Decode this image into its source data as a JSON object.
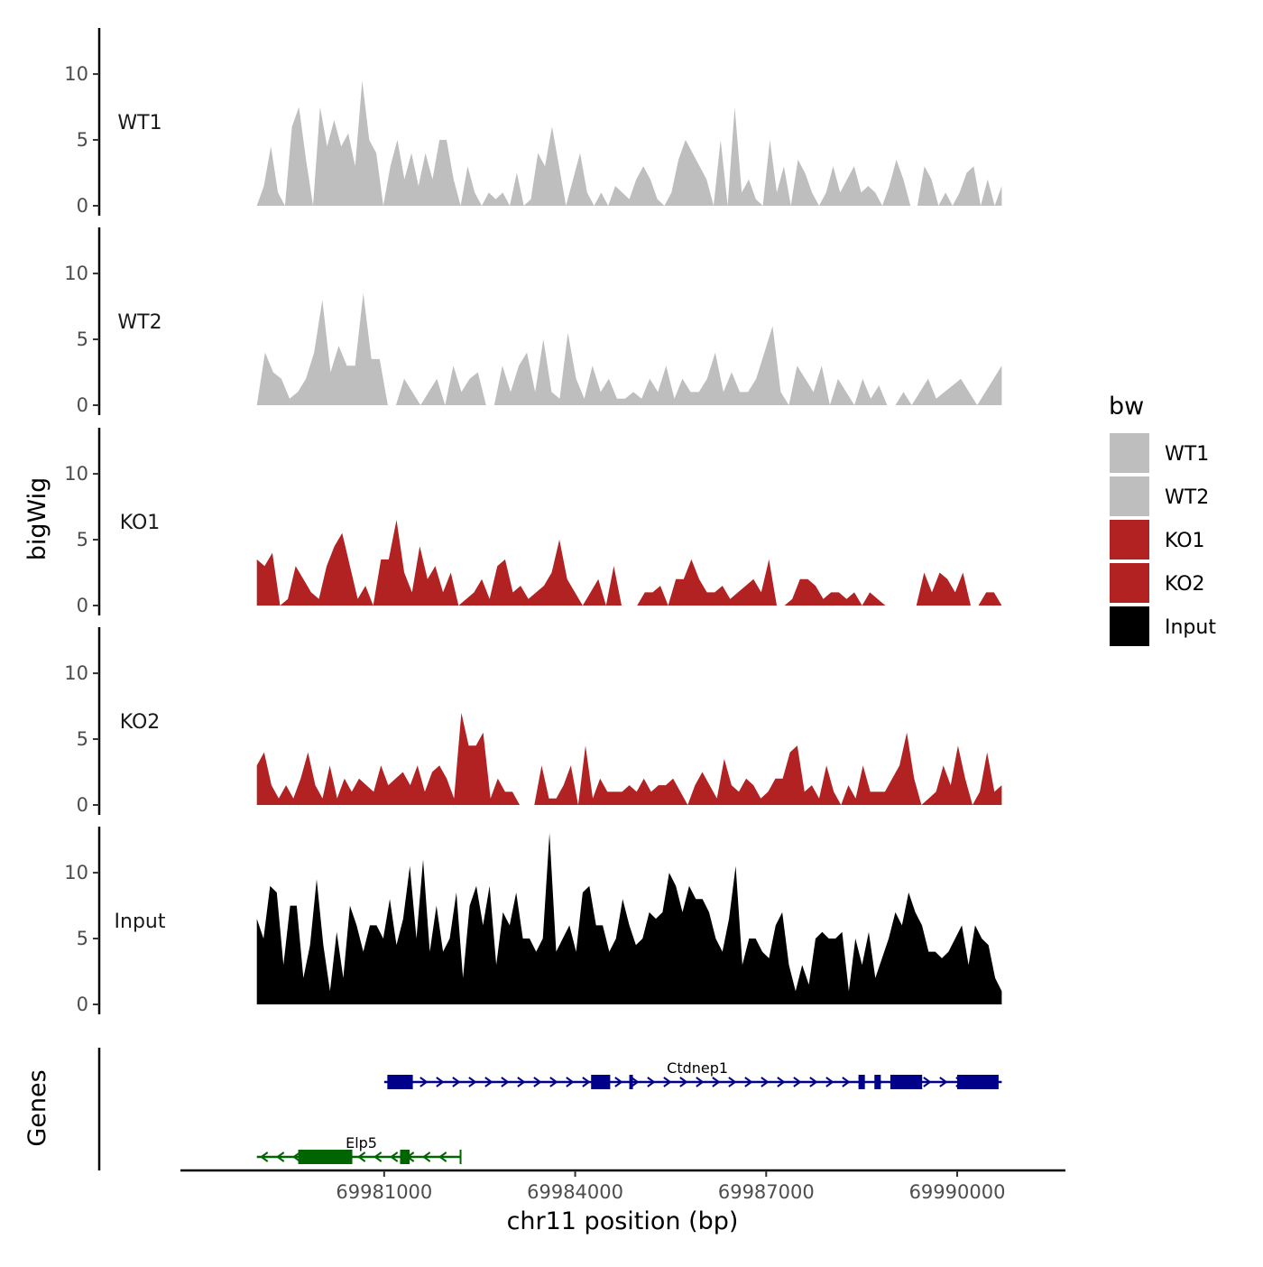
{
  "chart_data": {
    "type": "area",
    "chromosome": "chr11",
    "xlabel": "chr11 position (bp)",
    "ylabel": "bigWig",
    "genes_label": "Genes",
    "xlim": [
      69977800,
      69991700
    ],
    "data_xrange": [
      69979000,
      69990700
    ],
    "x_ticks": [
      69981000,
      69984000,
      69987000,
      69990000
    ],
    "x_tick_labels": [
      "69981000",
      "69984000",
      "69987000",
      "69990000"
    ],
    "ylim": [
      0,
      13.5
    ],
    "y_ticks": [
      0,
      5,
      10
    ],
    "y_tick_labels": [
      "0",
      "5",
      "10"
    ],
    "legend": {
      "title": "bw",
      "entries": [
        {
          "label": "WT1",
          "color": "#bebebe"
        },
        {
          "label": "WT2",
          "color": "#bebebe"
        },
        {
          "label": "KO1",
          "color": "#b22222"
        },
        {
          "label": "KO2",
          "color": "#b22222"
        },
        {
          "label": "Input",
          "color": "#000000"
        }
      ]
    },
    "series": [
      {
        "name": "WT1",
        "color": "#bebebe",
        "values": [
          0,
          1.5,
          4.5,
          1,
          0,
          6,
          7.5,
          3.5,
          0,
          7.5,
          4.5,
          6.5,
          4.5,
          5.5,
          3,
          9.5,
          5,
          4,
          0,
          3,
          5,
          2,
          4,
          1.5,
          4,
          2,
          5,
          5,
          2,
          0,
          3,
          1,
          0,
          1,
          0.5,
          1,
          0,
          2.5,
          0,
          0.5,
          4,
          3,
          6,
          3,
          0,
          2,
          4,
          1,
          0,
          1,
          0,
          1.5,
          1,
          0.5,
          2,
          3,
          2,
          0.5,
          0,
          1,
          3.5,
          5,
          4,
          3,
          2,
          0,
          5,
          0,
          7.5,
          1,
          2,
          0.5,
          0,
          5,
          1,
          3,
          0,
          3.5,
          2.5,
          1,
          0,
          1,
          3,
          1,
          2,
          3,
          1,
          1.5,
          1,
          0,
          1.5,
          3.5,
          2,
          0,
          0,
          3,
          2,
          0,
          1,
          0,
          1,
          2.5,
          3,
          0,
          2,
          0,
          1.5
        ]
      },
      {
        "name": "WT2",
        "color": "#bebebe",
        "values": [
          0,
          4,
          2.5,
          2,
          0.5,
          1,
          2,
          4,
          8,
          2.5,
          4.5,
          3,
          3,
          8.5,
          3.5,
          3.5,
          0,
          0,
          2,
          1,
          0,
          1,
          2,
          0,
          3,
          1,
          2,
          2.5,
          0,
          0,
          3,
          1,
          3,
          4,
          1,
          5,
          1,
          0.5,
          5.5,
          2,
          0.5,
          3,
          1,
          2,
          0.5,
          0.5,
          1,
          0.5,
          2,
          1,
          3,
          0.5,
          2,
          1,
          1,
          2,
          4,
          1,
          2.5,
          1,
          1,
          2,
          4,
          6,
          1,
          0,
          3,
          2,
          1,
          3,
          0,
          2,
          1,
          0,
          2,
          0.5,
          1.5,
          0,
          0,
          1,
          0,
          1,
          2,
          0.5,
          1,
          1.5,
          2,
          1,
          0,
          1,
          2,
          3
        ]
      },
      {
        "name": "KO1",
        "color": "#b22222",
        "values": [
          3.5,
          3,
          4,
          0,
          0.5,
          3,
          2,
          1,
          0.5,
          3,
          4.5,
          5.5,
          3,
          0.5,
          1.5,
          0,
          3.5,
          3.5,
          6.5,
          2.5,
          1,
          4.5,
          2,
          3,
          1,
          2.5,
          0,
          0.5,
          1,
          2,
          0.5,
          3,
          3.5,
          1,
          1.5,
          0.5,
          1,
          1.5,
          2.5,
          5,
          2,
          1,
          0,
          1,
          2,
          0,
          3,
          0,
          0,
          0,
          1,
          1,
          1.5,
          0,
          2,
          2,
          3.5,
          2,
          1,
          1,
          1.5,
          0.5,
          1,
          1.5,
          2,
          1,
          3.5,
          0,
          0,
          0.5,
          2,
          2,
          1.5,
          0.5,
          1,
          1,
          0.5,
          1,
          0,
          1,
          0.5,
          0,
          0,
          0,
          0,
          0,
          2.5,
          1,
          2.5,
          2,
          1,
          2.5,
          0,
          0,
          1,
          1,
          0
        ]
      },
      {
        "name": "KO2",
        "color": "#b22222",
        "values": [
          3,
          4,
          1.5,
          0.5,
          1.5,
          0.5,
          2,
          4,
          1.5,
          0.5,
          3,
          0.5,
          2,
          1,
          2,
          1.5,
          1,
          3,
          1.5,
          2,
          2.5,
          1.5,
          3,
          1,
          2.5,
          3,
          2,
          0.5,
          7,
          4.5,
          4.5,
          5.5,
          0.5,
          2,
          1,
          1,
          0,
          0,
          0,
          3,
          0.5,
          0.5,
          1.5,
          3,
          0,
          4.5,
          0.5,
          2,
          1,
          1,
          1,
          1.5,
          1,
          2,
          1,
          1.5,
          1.5,
          2,
          1,
          0,
          1.5,
          2.5,
          1.5,
          0.5,
          3.5,
          1.5,
          1,
          2,
          1.5,
          0.5,
          1,
          2,
          2,
          4,
          4.5,
          1,
          1.5,
          0.5,
          3,
          1,
          0,
          1.5,
          0.5,
          3,
          1,
          1,
          1,
          2,
          3,
          5.5,
          2,
          0,
          0.5,
          1,
          3,
          1.5,
          4.5,
          2,
          0,
          1,
          4,
          1,
          1.5
        ]
      },
      {
        "name": "Input",
        "color": "#000000",
        "values": [
          6.5,
          5,
          9,
          8.5,
          3,
          7.5,
          7.5,
          2,
          4.5,
          9.5,
          4.5,
          1,
          5.5,
          2,
          7.5,
          6,
          4,
          6,
          6,
          5,
          8,
          4.5,
          6.5,
          10.5,
          5,
          11,
          4,
          7.5,
          4,
          5,
          8.5,
          2,
          7.5,
          9,
          6,
          9,
          3,
          7,
          6,
          8.5,
          5,
          5,
          4,
          5,
          13,
          4,
          5,
          6,
          4,
          8.5,
          9,
          6,
          6,
          4,
          5,
          8,
          6,
          4.5,
          5,
          7,
          6.5,
          7,
          10,
          9,
          7,
          9,
          8,
          8,
          7,
          5,
          4,
          6.5,
          10.5,
          3,
          5,
          5,
          4,
          3.5,
          6,
          7,
          3,
          1,
          3,
          1.5,
          5,
          5.5,
          5,
          5,
          5.5,
          1,
          5,
          3,
          5.5,
          2,
          3.5,
          5,
          7,
          6,
          8.5,
          7,
          6,
          4,
          4,
          3.5,
          4,
          5,
          6,
          3,
          6,
          5,
          4.5,
          2,
          1
        ]
      }
    ],
    "genes": [
      {
        "name": "Ctdnep1",
        "strand": "+",
        "start": 69981000,
        "end": 69990700,
        "color": "#00008b",
        "exons": [
          [
            69981050,
            69981450
          ],
          [
            69984250,
            69984550
          ],
          [
            69984850,
            69984900
          ],
          [
            69988450,
            69988550
          ],
          [
            69988700,
            69988800
          ],
          [
            69988950,
            69989450
          ],
          [
            69990000,
            69990650
          ]
        ]
      },
      {
        "name": "Elp5",
        "strand": "-",
        "start": 69979000,
        "end": 69982200,
        "color": "#006400",
        "exons": [
          [
            69979650,
            69980500
          ],
          [
            69981250,
            69981400
          ]
        ]
      }
    ]
  }
}
